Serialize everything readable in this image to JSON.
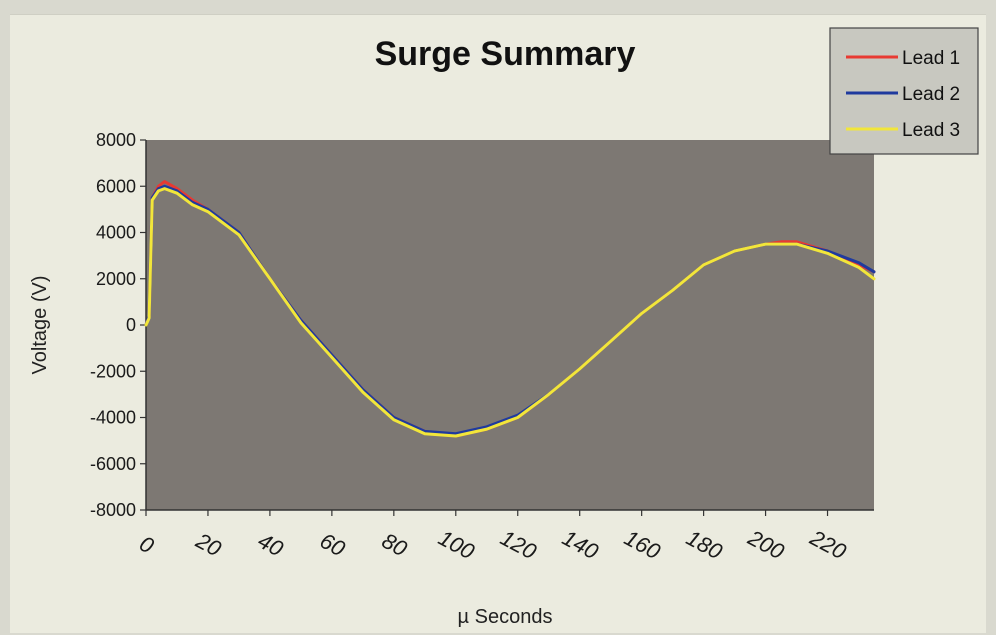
{
  "chart_data": {
    "type": "line",
    "title": "Surge Summary",
    "xlabel": "µ Seconds",
    "ylabel": "Voltage (V)",
    "xlim": [
      0,
      235
    ],
    "ylim": [
      -8000,
      8000
    ],
    "x_ticks": [
      "0",
      "20",
      "40",
      "60",
      "80",
      "100",
      "120",
      "140",
      "160",
      "180",
      "200",
      "220"
    ],
    "x_tick_values": [
      0,
      20,
      40,
      60,
      80,
      100,
      120,
      140,
      160,
      180,
      200,
      220
    ],
    "y_ticks": [
      "8000",
      "6000",
      "4000",
      "2000",
      "0",
      "-2000",
      "-4000",
      "-6000",
      "-8000"
    ],
    "y_tick_values": [
      8000,
      6000,
      4000,
      2000,
      0,
      -2000,
      -4000,
      -6000,
      -8000
    ],
    "grid": false,
    "legend_position": "top-right",
    "plot_background": "#7d7873",
    "series": [
      {
        "name": "Lead 1",
        "color": "#e83a32",
        "x": [
          0,
          1,
          2,
          4,
          6,
          10,
          15,
          20,
          30,
          40,
          50,
          60,
          70,
          80,
          90,
          100,
          110,
          120,
          130,
          140,
          150,
          160,
          170,
          180,
          190,
          200,
          205,
          210,
          220,
          230,
          235
        ],
        "y": [
          0,
          400,
          5500,
          6000,
          6200,
          5900,
          5400,
          5000,
          4000,
          2000,
          200,
          -1300,
          -2800,
          -4000,
          -4600,
          -4800,
          -4500,
          -4000,
          -3000,
          -1900,
          -700,
          500,
          1500,
          2600,
          3200,
          3500,
          3600,
          3600,
          3200,
          2600,
          2300
        ]
      },
      {
        "name": "Lead 2",
        "color": "#1f3a9e",
        "x": [
          0,
          1,
          2,
          4,
          6,
          10,
          15,
          20,
          30,
          40,
          50,
          60,
          70,
          80,
          90,
          100,
          110,
          120,
          130,
          140,
          150,
          160,
          170,
          180,
          190,
          200,
          205,
          210,
          220,
          230,
          235
        ],
        "y": [
          0,
          400,
          5500,
          5900,
          6000,
          5800,
          5300,
          5000,
          4000,
          2000,
          200,
          -1300,
          -2800,
          -4000,
          -4600,
          -4700,
          -4400,
          -3900,
          -3000,
          -1900,
          -700,
          500,
          1500,
          2600,
          3200,
          3500,
          3500,
          3500,
          3200,
          2700,
          2300
        ]
      },
      {
        "name": "Lead 3",
        "color": "#f2e63a",
        "x": [
          0,
          1,
          2,
          4,
          6,
          10,
          15,
          20,
          30,
          40,
          50,
          60,
          70,
          80,
          90,
          100,
          110,
          120,
          130,
          140,
          150,
          160,
          170,
          180,
          190,
          200,
          205,
          210,
          220,
          230,
          235
        ],
        "y": [
          0,
          300,
          5400,
          5800,
          5900,
          5700,
          5200,
          4900,
          3900,
          2000,
          100,
          -1400,
          -2900,
          -4100,
          -4700,
          -4800,
          -4500,
          -4000,
          -3000,
          -1900,
          -700,
          500,
          1500,
          2600,
          3200,
          3500,
          3500,
          3500,
          3100,
          2500,
          2000
        ]
      }
    ]
  }
}
